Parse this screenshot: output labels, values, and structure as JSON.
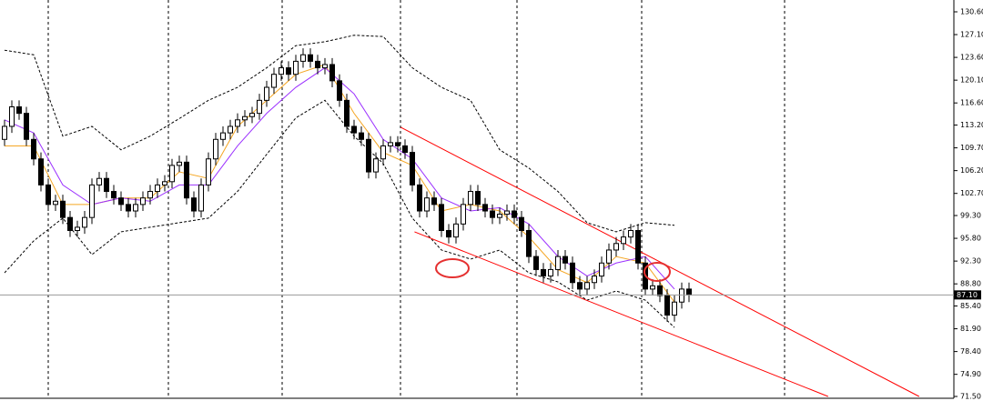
{
  "chart_data": {
    "type": "candlestick",
    "open": [
      111,
      113,
      116,
      115,
      111,
      108,
      104,
      101,
      101.5,
      99,
      97,
      97.5,
      99,
      104,
      105,
      103,
      102,
      101,
      100,
      101,
      102,
      103,
      104,
      104.5,
      107,
      107.5,
      102,
      100,
      104,
      108,
      111,
      112,
      113,
      114,
      114.5,
      115,
      117,
      119,
      121,
      122,
      121,
      123,
      124,
      123,
      122,
      122.5,
      120,
      117,
      113,
      112,
      111,
      106,
      108,
      110,
      110.5,
      110,
      109,
      104,
      100,
      102,
      101,
      97,
      96,
      98,
      101,
      103,
      101,
      100,
      99,
      99.5,
      100,
      99,
      97,
      93,
      91,
      90,
      91,
      93,
      92,
      89,
      88,
      89,
      90,
      92,
      94,
      95,
      96,
      97,
      92,
      88,
      88.5,
      87,
      84,
      86,
      88
    ],
    "high": [
      114,
      117,
      117,
      116,
      112,
      109,
      105,
      102.5,
      102.5,
      100,
      98.5,
      100,
      105,
      106,
      106,
      104,
      103,
      102,
      102,
      103,
      104,
      105,
      105.5,
      108,
      108.5,
      108.5,
      103,
      105,
      109,
      112,
      113,
      114,
      115,
      115.5,
      116,
      118,
      120,
      122,
      123,
      123,
      124,
      125,
      125,
      124,
      123.5,
      123.5,
      121,
      118,
      114,
      113,
      112,
      109,
      111,
      111.5,
      111.5,
      111,
      110,
      105,
      103,
      103,
      102,
      98,
      99,
      102,
      104,
      104,
      102,
      101,
      100.5,
      101,
      101,
      100,
      98,
      94,
      92,
      92,
      94,
      94,
      93,
      90,
      90,
      91,
      93,
      95,
      96,
      97,
      98,
      98,
      93,
      89.5,
      89.5,
      88,
      87,
      89,
      89
    ],
    "low": [
      110,
      112,
      114,
      110,
      107,
      103,
      100,
      100,
      98,
      96,
      96,
      96.5,
      98,
      103,
      102,
      101,
      100,
      99,
      99,
      100,
      101,
      102,
      103,
      103.5,
      106,
      101,
      99,
      99,
      103,
      107,
      110,
      111,
      112,
      113,
      113.5,
      114,
      116,
      118,
      120,
      120,
      120,
      122,
      122,
      121,
      121,
      119,
      116,
      112,
      111,
      110,
      105,
      105,
      107,
      109,
      109,
      108,
      103,
      99,
      99,
      100,
      96,
      95,
      95,
      97,
      100,
      100,
      99,
      98,
      98,
      98.5,
      98,
      96,
      92,
      90,
      89,
      89,
      90,
      91,
      88,
      87,
      87,
      88,
      89,
      91,
      93,
      94,
      95,
      91,
      87,
      87,
      86,
      83,
      83,
      85,
      86
    ],
    "close": [
      113,
      116,
      115,
      111,
      108,
      104,
      101,
      101.5,
      99,
      97,
      97.5,
      99,
      104,
      105,
      103,
      102,
      101,
      100,
      101,
      102,
      103,
      104,
      104.5,
      107,
      107.5,
      102,
      100,
      104,
      108,
      111,
      112,
      113,
      114,
      114.5,
      115,
      117,
      119,
      121,
      122,
      121,
      123,
      124,
      123,
      122,
      122.5,
      120,
      117,
      113,
      112,
      111,
      106,
      108,
      110,
      110.5,
      110,
      109,
      104,
      100,
      102,
      101,
      97,
      96,
      98,
      101,
      103,
      101,
      100,
      99,
      99.5,
      100,
      99,
      97,
      93,
      91,
      90,
      91,
      93,
      92,
      89,
      88,
      89,
      90,
      92,
      94,
      95,
      96,
      97,
      92,
      88,
      88.5,
      87,
      84,
      86,
      88,
      87.1
    ],
    "series": [
      {
        "color": "#000000",
        "x": [
          0,
          4,
          8,
          12,
          16,
          20,
          24,
          28,
          32,
          36,
          40,
          44,
          48,
          52,
          56,
          60,
          64,
          68,
          72,
          76,
          80,
          84,
          88,
          92
        ],
        "values": [
          124.7,
          124,
          111.5,
          113,
          109.4,
          111.5,
          114.2,
          117,
          119,
          122,
          125.4,
          126,
          127,
          126.8,
          122,
          119,
          117,
          109.4,
          106.6,
          103,
          98.2,
          96.8,
          98.2,
          97.8
        ]
      },
      {
        "color": "#000000",
        "x": [
          0,
          4,
          8,
          12,
          16,
          20,
          24,
          28,
          32,
          36,
          40,
          44,
          48,
          52,
          56,
          60,
          64,
          68,
          72,
          76,
          80,
          84,
          88,
          92
        ],
        "values": [
          90.5,
          95.4,
          98.9,
          93.3,
          96.8,
          97.5,
          98.2,
          98.9,
          103,
          108.7,
          114.3,
          117,
          111.5,
          107.3,
          98.9,
          94,
          92.6,
          94,
          90.5,
          89.1,
          86.3,
          87.7,
          86.3,
          82.1
        ]
      },
      {
        "color": "#f5a623",
        "x": [
          0,
          4,
          8,
          12,
          16,
          20,
          24,
          28,
          32,
          36,
          40,
          44,
          48,
          52,
          56,
          60,
          64,
          68,
          72,
          76,
          80,
          84,
          88,
          92
        ],
        "values": [
          110,
          110,
          101,
          101,
          102,
          102,
          106,
          105,
          113,
          117,
          121,
          122.5,
          115,
          109,
          107,
          100,
          101,
          100,
          96,
          91,
          89,
          93,
          92,
          86
        ]
      },
      {
        "color": "#9b30ff",
        "x": [
          0,
          4,
          8,
          12,
          16,
          20,
          24,
          28,
          32,
          36,
          40,
          44,
          48,
          52,
          56,
          60,
          64,
          68,
          72,
          76,
          80,
          84,
          88,
          92
        ],
        "values": [
          114,
          112,
          104,
          101,
          102,
          101.5,
          104,
          104,
          110,
          115,
          119,
          122,
          118,
          111,
          108,
          102,
          100,
          100.5,
          98,
          93,
          90,
          92,
          93,
          88
        ]
      },
      {
        "color": "#ff0000",
        "x": [
          54.4,
          125.6
        ],
        "values": [
          112.86,
          71.5
        ]
      },
      {
        "color": "#ff0000",
        "x": [
          56.3,
          113.1
        ],
        "values": [
          96.8,
          71.5
        ]
      }
    ],
    "current_price": {
      "value": 87.1,
      "label": "87.10"
    },
    "ylim": [
      71.5,
      130.6
    ],
    "yticks": [
      {
        "value": 130.6,
        "label": "130.60"
      },
      {
        "value": 127.1,
        "label": "127.10"
      },
      {
        "value": 123.6,
        "label": "123.60"
      },
      {
        "value": 120.1,
        "label": "120.10"
      },
      {
        "value": 116.6,
        "label": "116.60"
      },
      {
        "value": 113.2,
        "label": "113.20"
      },
      {
        "value": 109.7,
        "label": "109.70"
      },
      {
        "value": 106.2,
        "label": "106.20"
      },
      {
        "value": 102.7,
        "label": "102.70"
      },
      {
        "value": 99.3,
        "label": "99.30"
      },
      {
        "value": 95.8,
        "label": "95.80"
      },
      {
        "value": 92.3,
        "label": "92.30"
      },
      {
        "value": 88.8,
        "label": "88.80"
      },
      {
        "value": 85.4,
        "label": "85.40"
      },
      {
        "value": 81.9,
        "label": "81.90"
      },
      {
        "value": 78.4,
        "label": "78.40"
      },
      {
        "value": 74.9,
        "label": "74.90"
      },
      {
        "value": 71.5,
        "label": "71.50"
      }
    ]
  }
}
